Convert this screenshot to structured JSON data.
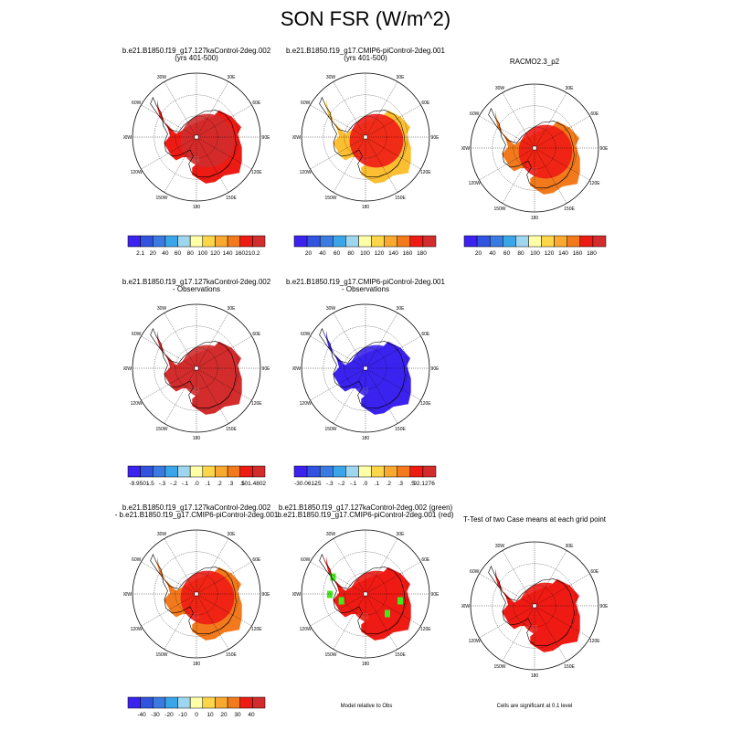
{
  "title": "SON FSR (W/m^2)",
  "colors": {
    "palette": [
      "#3b22ee",
      "#3153e0",
      "#3b7ae0",
      "#3aa6e8",
      "#9ed6f0",
      "#ffffa8",
      "#fcd548",
      "#f9a930",
      "#f27a1c",
      "#ee1b14",
      "#d22c2c"
    ],
    "diff_palette": [
      "#3b22ee",
      "#3153e0",
      "#3b7ae0",
      "#3aa6e8",
      "#9ed6f0",
      "#ffffa8",
      "#fcd548",
      "#f9a930",
      "#f27a1c",
      "#ee1b14",
      "#d22c2c"
    ],
    "significant_green": "#44e81c",
    "red": "#ee1b14",
    "darkred": "#d22c2c",
    "orange": "#f27a1c",
    "yellow": "#fcbf32"
  },
  "map_labels": {
    "lon": [
      "30E",
      "60E",
      "90E",
      "120E",
      "150E",
      "180",
      "150W",
      "120W",
      "90W",
      "60W",
      "30W"
    ]
  },
  "panels": [
    {
      "title": "b.e21.B1850.f19_g17.127kaControl-2deg.002\n(yrs 401-500)",
      "fill": "red",
      "inner": "darkred",
      "pole": "ice",
      "colorbar": [
        "2.1",
        "20",
        "40",
        "60",
        "80",
        "100",
        "120",
        "140",
        "160",
        "210.2"
      ]
    },
    {
      "title": "b.e21.B1850.f19_g17.CMIP6-piControl-2deg.001\n(yrs 401-500)",
      "fill": "yellow",
      "inner": "red",
      "pole": "ice",
      "colorbar": [
        "20",
        "40",
        "60",
        "80",
        "100",
        "120",
        "140",
        "160",
        "180"
      ]
    },
    {
      "title": "RACMO2.3_p2",
      "fill": "orange",
      "inner": "red",
      "pole": "ice",
      "colorbar": [
        "20",
        "40",
        "60",
        "80",
        "100",
        "120",
        "140",
        "160",
        "180"
      ]
    },
    {
      "title": "b.e21.B1850.f19_g17.127kaControl-2deg.002\n- Observations",
      "fill": "darkred",
      "inner": "darkred",
      "pole": "ice",
      "colorbar": [
        "-9.9501",
        "-.5",
        "-.3",
        "-.2",
        "-.1",
        ".0",
        ".1",
        ".2",
        ".3",
        ".5",
        "101.4802"
      ]
    },
    {
      "title": "b.e21.B1850.f19_g17.CMIP6-piControl-2deg.001\n- Observations",
      "fill": "blue",
      "inner": "blue",
      "pole": "ice",
      "colorbar": [
        "-30.0612",
        "-.5",
        "-.3",
        "-.2",
        "-.1",
        ".0",
        ".1",
        ".2",
        ".3",
        ".5",
        "92.1276"
      ]
    },
    {
      "title": "b.e21.B1850.f19_g17.127kaControl-2deg.002\n- b.e21.B1850.f19_g17.CMIP6-piControl-2deg.001",
      "fill": "orange",
      "inner": "red",
      "pole": "ice",
      "colorbar": [
        "-40",
        "-30",
        "-20",
        "-10",
        "0",
        "10",
        "20",
        "30",
        "40"
      ]
    },
    {
      "title": "b.e21.B1850.f19_g17.127kaControl-2deg.002 (green)\nb.e21.B1850.f19_g17.CMIP6-piControl-2deg.001 (red)",
      "fill": "red",
      "inner": "red",
      "pole": "ice",
      "note": "Model relative to Obs"
    },
    {
      "title": "T-Test of two Case means at each grid point",
      "fill": "red",
      "inner": "red",
      "pole": "ice",
      "note": "Cells are significant at 0.1 level"
    }
  ]
}
